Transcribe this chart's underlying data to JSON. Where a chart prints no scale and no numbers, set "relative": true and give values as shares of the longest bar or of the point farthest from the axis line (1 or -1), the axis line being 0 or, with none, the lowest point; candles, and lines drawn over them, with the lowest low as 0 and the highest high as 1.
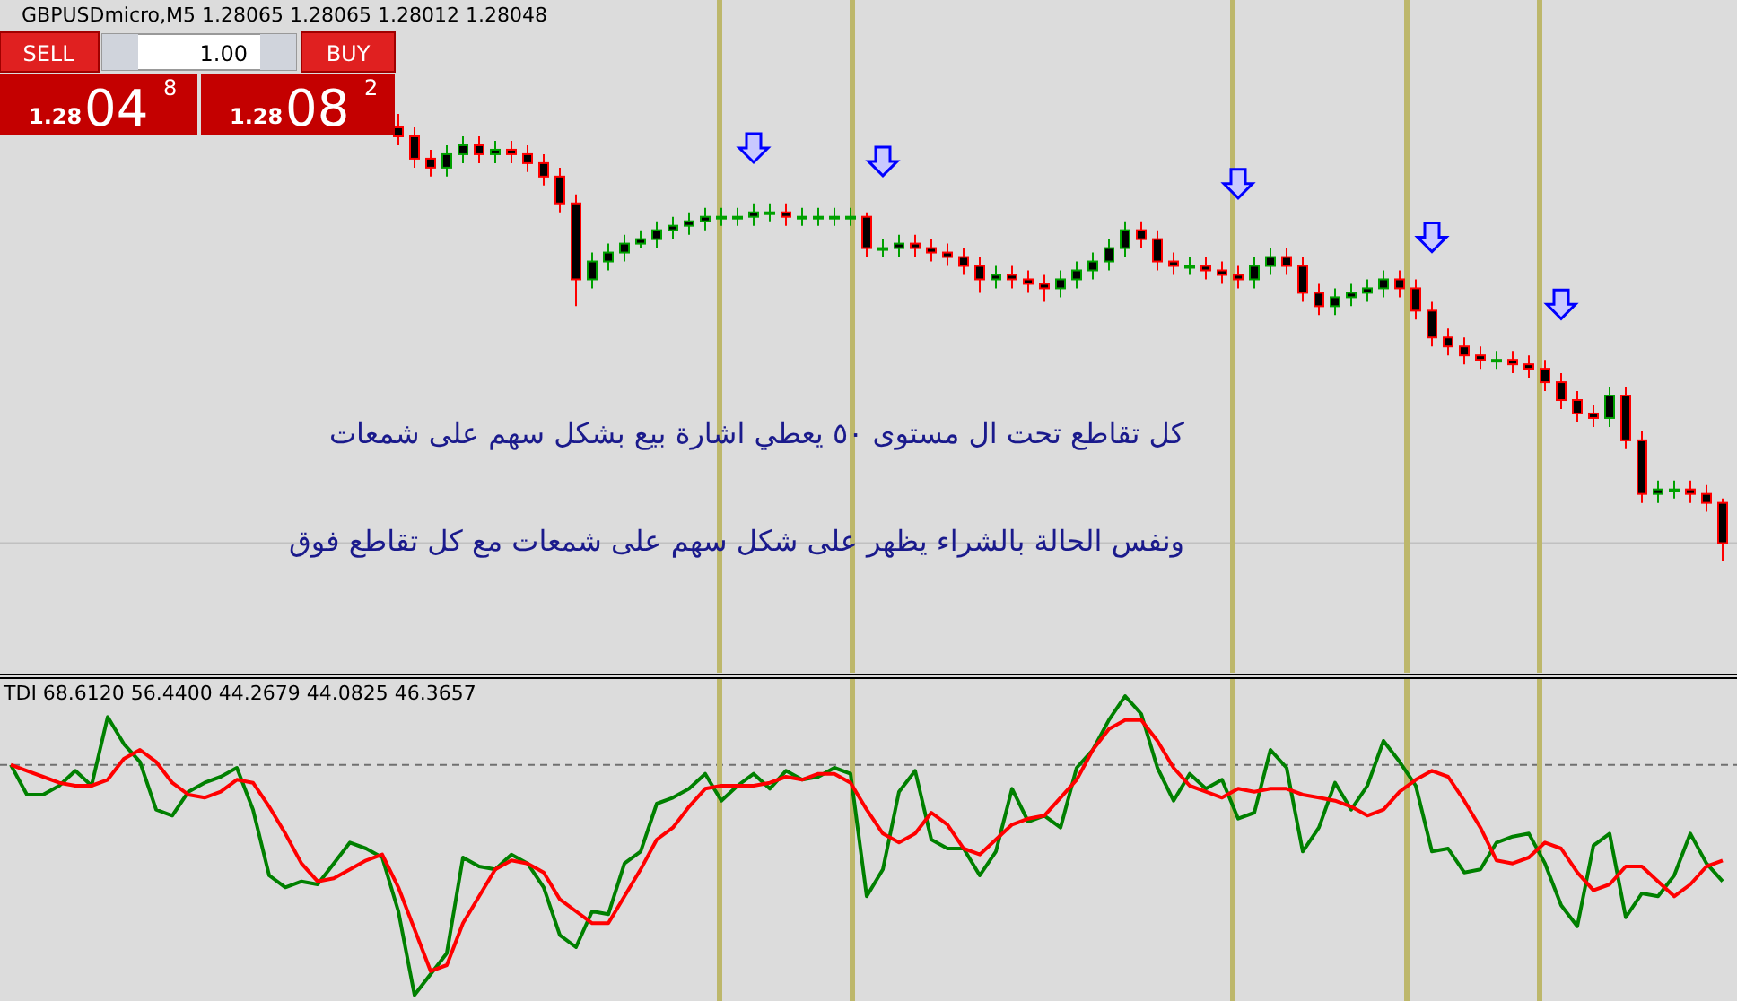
{
  "chart_data": [
    {
      "type": "candlestick",
      "title": "GBPUSDmicro,M5  1.28065 1.28065 1.28012 1.28048",
      "relative": true,
      "categories": [
        null,
        null,
        null,
        null,
        null,
        null,
        null,
        null,
        null,
        null,
        null,
        null,
        null,
        null,
        null,
        null,
        null,
        null,
        null,
        null,
        null,
        null,
        null,
        null,
        null,
        null,
        null,
        null,
        null,
        null,
        null,
        null,
        null,
        null,
        null,
        null,
        null,
        null,
        null,
        null,
        null,
        null,
        null,
        null,
        null,
        null,
        null,
        null,
        null,
        null,
        null,
        null,
        null,
        null,
        null,
        null,
        null,
        null,
        null,
        null,
        null,
        null,
        null,
        null,
        null,
        null,
        null,
        null,
        null,
        null,
        null,
        null,
        null,
        null,
        null,
        null,
        null,
        null,
        null,
        null,
        null,
        null,
        null,
        null,
        null,
        null,
        null,
        null,
        null,
        null,
        null,
        null,
        null,
        null,
        null,
        null,
        null,
        null,
        null,
        null,
        null,
        null,
        null,
        null,
        null,
        null,
        null
      ],
      "ohlc": [
        null,
        null,
        null,
        null,
        null,
        null,
        null,
        null,
        null,
        null,
        null,
        null,
        null,
        null,
        null,
        null,
        null,
        null,
        null,
        null,
        null,
        null,
        null,
        null,
        [
          0.97,
          1.0,
          0.93,
          0.95
        ],
        [
          0.95,
          0.97,
          0.88,
          0.9
        ],
        [
          0.9,
          0.92,
          0.86,
          0.88
        ],
        [
          0.88,
          0.93,
          0.86,
          0.91
        ],
        [
          0.91,
          0.95,
          0.89,
          0.93
        ],
        [
          0.93,
          0.95,
          0.89,
          0.91
        ],
        [
          0.91,
          0.94,
          0.89,
          0.92
        ],
        [
          0.92,
          0.94,
          0.89,
          0.91
        ],
        [
          0.91,
          0.93,
          0.87,
          0.89
        ],
        [
          0.89,
          0.91,
          0.84,
          0.86
        ],
        [
          0.86,
          0.88,
          0.78,
          0.8
        ],
        [
          0.8,
          0.82,
          0.57,
          0.63
        ],
        [
          0.63,
          0.69,
          0.61,
          0.67
        ],
        [
          0.67,
          0.71,
          0.65,
          0.69
        ],
        [
          0.69,
          0.73,
          0.67,
          0.71
        ],
        [
          0.71,
          0.74,
          0.7,
          0.72
        ],
        [
          0.72,
          0.76,
          0.7,
          0.74
        ],
        [
          0.74,
          0.77,
          0.72,
          0.75
        ],
        [
          0.75,
          0.78,
          0.73,
          0.76
        ],
        [
          0.76,
          0.79,
          0.74,
          0.77
        ],
        [
          0.77,
          0.79,
          0.75,
          0.77
        ],
        [
          0.77,
          0.79,
          0.75,
          0.77
        ],
        [
          0.77,
          0.8,
          0.75,
          0.78
        ],
        [
          0.78,
          0.8,
          0.76,
          0.78
        ],
        [
          0.78,
          0.8,
          0.75,
          0.77
        ],
        [
          0.77,
          0.79,
          0.75,
          0.77
        ],
        [
          0.77,
          0.79,
          0.75,
          0.77
        ],
        [
          0.77,
          0.79,
          0.75,
          0.77
        ],
        [
          0.77,
          0.79,
          0.75,
          0.77
        ],
        [
          0.77,
          0.78,
          0.68,
          0.7
        ],
        [
          0.7,
          0.72,
          0.68,
          0.7
        ],
        [
          0.7,
          0.73,
          0.68,
          0.71
        ],
        [
          0.71,
          0.73,
          0.68,
          0.7
        ],
        [
          0.7,
          0.72,
          0.67,
          0.69
        ],
        [
          0.69,
          0.71,
          0.66,
          0.68
        ],
        [
          0.68,
          0.7,
          0.64,
          0.66
        ],
        [
          0.66,
          0.68,
          0.6,
          0.63
        ],
        [
          0.63,
          0.66,
          0.61,
          0.64
        ],
        [
          0.64,
          0.66,
          0.61,
          0.63
        ],
        [
          0.63,
          0.65,
          0.6,
          0.62
        ],
        [
          0.62,
          0.64,
          0.58,
          0.61
        ],
        [
          0.61,
          0.65,
          0.59,
          0.63
        ],
        [
          0.63,
          0.67,
          0.61,
          0.65
        ],
        [
          0.65,
          0.69,
          0.63,
          0.67
        ],
        [
          0.67,
          0.72,
          0.65,
          0.7
        ],
        [
          0.7,
          0.76,
          0.68,
          0.74
        ],
        [
          0.74,
          0.76,
          0.7,
          0.72
        ],
        [
          0.72,
          0.74,
          0.65,
          0.67
        ],
        [
          0.67,
          0.69,
          0.64,
          0.66
        ],
        [
          0.66,
          0.68,
          0.64,
          0.66
        ],
        [
          0.66,
          0.68,
          0.63,
          0.65
        ],
        [
          0.65,
          0.67,
          0.62,
          0.64
        ],
        [
          0.64,
          0.66,
          0.61,
          0.63
        ],
        [
          0.63,
          0.68,
          0.61,
          0.66
        ],
        [
          0.66,
          0.7,
          0.64,
          0.68
        ],
        [
          0.68,
          0.7,
          0.64,
          0.66
        ],
        [
          0.66,
          0.68,
          0.58,
          0.6
        ],
        [
          0.6,
          0.62,
          0.55,
          0.57
        ],
        [
          0.57,
          0.61,
          0.55,
          0.59
        ],
        [
          0.59,
          0.62,
          0.57,
          0.6
        ],
        [
          0.6,
          0.63,
          0.58,
          0.61
        ],
        [
          0.61,
          0.65,
          0.59,
          0.63
        ],
        [
          0.63,
          0.65,
          0.59,
          0.61
        ],
        [
          0.61,
          0.63,
          0.54,
          0.56
        ],
        [
          0.56,
          0.58,
          0.48,
          0.5
        ],
        [
          0.5,
          0.52,
          0.46,
          0.48
        ],
        [
          0.48,
          0.5,
          0.44,
          0.46
        ],
        [
          0.46,
          0.48,
          0.43,
          0.45
        ],
        [
          0.45,
          0.47,
          0.43,
          0.45
        ],
        [
          0.45,
          0.47,
          0.42,
          0.44
        ],
        [
          0.44,
          0.46,
          0.41,
          0.43
        ],
        [
          0.43,
          0.45,
          0.38,
          0.4
        ],
        [
          0.4,
          0.42,
          0.34,
          0.36
        ],
        [
          0.36,
          0.38,
          0.31,
          0.33
        ],
        [
          0.33,
          0.35,
          0.3,
          0.32
        ],
        [
          0.32,
          0.39,
          0.3,
          0.37
        ],
        [
          0.37,
          0.39,
          0.25,
          0.27
        ],
        [
          0.27,
          0.29,
          0.13,
          0.15
        ],
        [
          0.15,
          0.18,
          0.13,
          0.16
        ],
        [
          0.16,
          0.18,
          0.14,
          0.16
        ],
        [
          0.16,
          0.18,
          0.13,
          0.15
        ],
        [
          0.15,
          0.17,
          0.11,
          0.13
        ],
        [
          0.13,
          0.14,
          0.0,
          0.04
        ]
      ],
      "series": [
        {
          "type": "scatter",
          "color": "#0000ff",
          "values": [
            null,
            null,
            null,
            null,
            null,
            null,
            null,
            null,
            null,
            null,
            null,
            null,
            null,
            null,
            null,
            null,
            null,
            null,
            null,
            null,
            null,
            null,
            null,
            null,
            null,
            null,
            null,
            null,
            null,
            null,
            null,
            null,
            null,
            null,
            null,
            null,
            null,
            null,
            null,
            null,
            null,
            null,
            null,
            null,
            null,
            null,
            0.92,
            null,
            null,
            null,
            null,
            null,
            null,
            null,
            0.89,
            null,
            null,
            null,
            null,
            null,
            null,
            null,
            null,
            null,
            null,
            null,
            null,
            null,
            null,
            null,
            null,
            null,
            null,
            null,
            null,
            null,
            0.84,
            null,
            null,
            null,
            null,
            null,
            null,
            null,
            null,
            null,
            null,
            null,
            0.72,
            null,
            null,
            null,
            null,
            null,
            null,
            null,
            0.57,
            null,
            null,
            null,
            null,
            null,
            null,
            null,
            null,
            null,
            null
          ]
        }
      ],
      "ref_lines": [
        {
          "axis": "y",
          "value": 0.04,
          "color": "#c0c0c0"
        }
      ],
      "annotations": [
        "كل تقاطع تحت ال مستوى ٥٠  يعطي اشارة بيع بشكل سهم على شمعات",
        "ونفس الحالة بالشراء يظهر على شكل سهم على شمعات مع  كل تقاطع فوق",
        "SELL",
        "1.00",
        "BUY",
        "1.28",
        "04",
        "8",
        "1.28",
        "08",
        "2"
      ]
    },
    {
      "type": "line",
      "title": "TDI 68.6120 56.4400 44.2679 44.0825 46.3657",
      "relative": true,
      "categories": [
        null,
        null,
        null,
        null,
        null,
        null,
        null,
        null,
        null,
        null,
        null,
        null,
        null,
        null,
        null,
        null,
        null,
        null,
        null,
        null,
        null,
        null,
        null,
        null,
        null,
        null,
        null,
        null,
        null,
        null,
        null,
        null,
        null,
        null,
        null,
        null,
        null,
        null,
        null,
        null,
        null,
        null,
        null,
        null,
        null,
        null,
        null,
        null,
        null,
        null,
        null,
        null,
        null,
        null,
        null,
        null,
        null,
        null,
        null,
        null,
        null,
        null,
        null,
        null,
        null,
        null,
        null,
        null,
        null,
        null,
        null,
        null,
        null,
        null,
        null,
        null,
        null,
        null,
        null,
        null,
        null,
        null,
        null,
        null,
        null,
        null,
        null,
        null,
        null,
        null,
        null,
        null,
        null,
        null,
        null,
        null,
        null,
        null,
        null,
        null,
        null,
        null,
        null,
        null,
        null,
        null,
        null
      ],
      "series": [
        {
          "color": "#008000",
          "values": [
            0.77,
            0.67,
            0.67,
            0.7,
            0.75,
            0.7,
            0.93,
            0.84,
            0.78,
            0.62,
            0.6,
            0.68,
            0.71,
            0.73,
            0.76,
            0.62,
            0.4,
            0.36,
            0.38,
            0.37,
            0.44,
            0.51,
            0.49,
            0.46,
            0.28,
            0.0,
            0.07,
            0.14,
            0.46,
            0.43,
            0.42,
            0.47,
            0.44,
            0.36,
            0.2,
            0.16,
            0.28,
            0.27,
            0.44,
            0.48,
            0.64,
            0.66,
            0.69,
            0.74,
            0.65,
            0.7,
            0.74,
            0.69,
            0.75,
            0.72,
            0.73,
            0.76,
            0.74,
            0.33,
            0.42,
            0.68,
            0.75,
            0.52,
            0.49,
            0.49,
            0.4,
            0.48,
            0.69,
            0.58,
            0.6,
            0.56,
            0.76,
            0.82,
            0.92,
            1.0,
            0.94,
            0.76,
            0.65,
            0.74,
            0.69,
            0.72,
            0.59,
            0.61,
            0.82,
            0.76,
            0.48,
            0.56,
            0.71,
            0.62,
            0.7,
            0.85,
            0.78,
            0.7,
            0.48,
            0.49,
            0.41,
            0.42,
            0.51,
            0.53,
            0.54,
            0.44,
            0.3,
            0.23,
            0.5,
            0.54,
            0.26,
            0.34,
            0.33,
            0.4,
            0.54,
            0.44,
            0.38
          ]
        },
        {
          "color": "#ff0000",
          "values": [
            0.77,
            0.75,
            0.73,
            0.71,
            0.7,
            0.7,
            0.72,
            0.79,
            0.82,
            0.78,
            0.71,
            0.67,
            0.66,
            0.68,
            0.72,
            0.71,
            0.63,
            0.54,
            0.44,
            0.38,
            0.39,
            0.42,
            0.45,
            0.47,
            0.36,
            0.22,
            0.08,
            0.1,
            0.24,
            0.33,
            0.42,
            0.45,
            0.44,
            0.41,
            0.32,
            0.28,
            0.24,
            0.24,
            0.33,
            0.42,
            0.52,
            0.56,
            0.63,
            0.69,
            0.7,
            0.7,
            0.7,
            0.71,
            0.73,
            0.72,
            0.74,
            0.74,
            0.71,
            0.62,
            0.54,
            0.51,
            0.54,
            0.61,
            0.57,
            0.49,
            0.47,
            0.52,
            0.57,
            0.59,
            0.6,
            0.66,
            0.72,
            0.82,
            0.89,
            0.92,
            0.92,
            0.85,
            0.76,
            0.7,
            0.68,
            0.66,
            0.69,
            0.68,
            0.69,
            0.69,
            0.67,
            0.66,
            0.65,
            0.63,
            0.6,
            0.62,
            0.68,
            0.72,
            0.75,
            0.73,
            0.65,
            0.56,
            0.45,
            0.44,
            0.46,
            0.51,
            0.49,
            0.41,
            0.35,
            0.37,
            0.43,
            0.43,
            0.38,
            0.33,
            0.37,
            0.43,
            0.45
          ]
        }
      ],
      "ref_lines": [
        {
          "axis": "y",
          "value": 0.77,
          "color": "#707070",
          "line_style": "dashed"
        }
      ]
    }
  ]
}
